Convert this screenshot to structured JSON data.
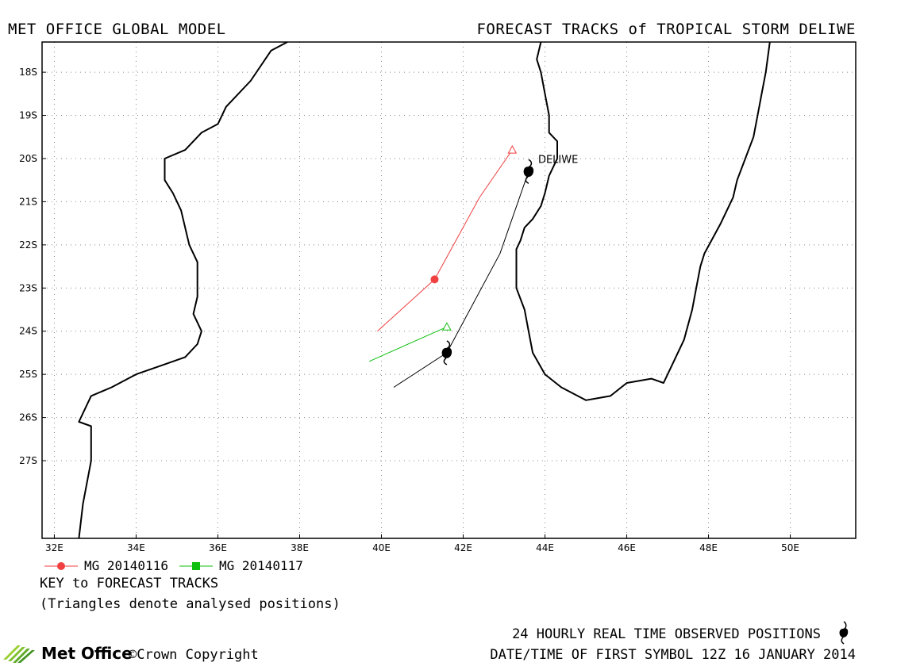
{
  "header": {
    "left": "MET OFFICE GLOBAL MODEL",
    "right": "FORECAST TRACKS of TROPICAL STORM DELIWE"
  },
  "map": {
    "lon_range": [
      31.7,
      51.6
    ],
    "lat_range": [
      -28.8,
      -17.3
    ],
    "grid": "dotted",
    "lat_ticks": [
      {
        "value": -18,
        "label": "18S"
      },
      {
        "value": -19,
        "label": "19S"
      },
      {
        "value": -20,
        "label": "20S"
      },
      {
        "value": -21,
        "label": "21S"
      },
      {
        "value": -22,
        "label": "22S"
      },
      {
        "value": -23,
        "label": "23S"
      },
      {
        "value": -24,
        "label": "24S"
      },
      {
        "value": -25,
        "label": "25S"
      },
      {
        "value": -26,
        "label": "26S"
      },
      {
        "value": -27,
        "label": "27S"
      }
    ],
    "lon_ticks": [
      {
        "value": 32,
        "label": "32E"
      },
      {
        "value": 34,
        "label": "34E"
      },
      {
        "value": 36,
        "label": "36E"
      },
      {
        "value": 38,
        "label": "38E"
      },
      {
        "value": 40,
        "label": "40E"
      },
      {
        "value": 42,
        "label": "42E"
      },
      {
        "value": 44,
        "label": "44E"
      },
      {
        "value": 46,
        "label": "46E"
      },
      {
        "value": 48,
        "label": "48E"
      },
      {
        "value": 50,
        "label": "50E"
      }
    ],
    "storm_name": "DELIWE"
  },
  "chart_data": {
    "type": "map",
    "storm": "DELIWE",
    "observed_track": {
      "symbol": "tropical-storm-icon",
      "points": [
        {
          "lon": 40.3,
          "lat": -25.3
        },
        {
          "lon": 41.6,
          "lat": -24.5,
          "symbol": true
        },
        {
          "lon": 42.9,
          "lat": -22.2
        },
        {
          "lon": 43.6,
          "lat": -20.3,
          "symbol": true
        }
      ]
    },
    "forecast_tracks": [
      {
        "name": "MG 20140116",
        "color": "#f04040",
        "analysed_position": {
          "lon": 43.2,
          "lat": -19.8
        },
        "points": [
          {
            "lon": 43.2,
            "lat": -19.8
          },
          {
            "lon": 42.4,
            "lat": -20.9
          },
          {
            "lon": 41.3,
            "lat": -22.8,
            "marker": true
          },
          {
            "lon": 39.9,
            "lat": -24.0
          }
        ]
      },
      {
        "name": "MG 20140117",
        "color": "#10c010",
        "analysed_position": {
          "lon": 41.6,
          "lat": -23.9
        },
        "points": [
          {
            "lon": 41.6,
            "lat": -23.9
          },
          {
            "lon": 39.7,
            "lat": -24.7
          }
        ]
      }
    ],
    "coastlines": {
      "africa": [
        [
          37.7,
          -17.3
        ],
        [
          37.3,
          -17.5
        ],
        [
          36.8,
          -18.2
        ],
        [
          36.2,
          -18.8
        ],
        [
          36.0,
          -19.2
        ],
        [
          35.6,
          -19.4
        ],
        [
          35.2,
          -19.8
        ],
        [
          34.7,
          -20.0
        ],
        [
          34.7,
          -20.5
        ],
        [
          34.9,
          -20.8
        ],
        [
          35.1,
          -21.2
        ],
        [
          35.3,
          -22.0
        ],
        [
          35.5,
          -22.4
        ],
        [
          35.5,
          -22.9
        ],
        [
          35.5,
          -23.2
        ],
        [
          35.4,
          -23.6
        ],
        [
          35.6,
          -24.0
        ],
        [
          35.5,
          -24.3
        ],
        [
          35.2,
          -24.6
        ],
        [
          34.6,
          -24.8
        ],
        [
          34.0,
          -25.0
        ],
        [
          33.4,
          -25.3
        ],
        [
          32.9,
          -25.5
        ],
        [
          32.6,
          -26.1
        ],
        [
          32.9,
          -26.2
        ],
        [
          32.9,
          -27.0
        ],
        [
          32.7,
          -28.0
        ],
        [
          32.6,
          -28.8
        ]
      ],
      "madagascar": [
        [
          43.9,
          -17.3
        ],
        [
          43.8,
          -17.7
        ],
        [
          43.9,
          -18.0
        ],
        [
          44.0,
          -18.5
        ],
        [
          44.1,
          -19.0
        ],
        [
          44.1,
          -19.4
        ],
        [
          44.3,
          -19.6
        ],
        [
          44.3,
          -20.0
        ],
        [
          44.1,
          -20.4
        ],
        [
          44.0,
          -20.8
        ],
        [
          43.9,
          -21.1
        ],
        [
          43.7,
          -21.4
        ],
        [
          43.5,
          -21.6
        ],
        [
          43.4,
          -21.9
        ],
        [
          43.3,
          -22.1
        ],
        [
          43.3,
          -22.5
        ],
        [
          43.3,
          -23.0
        ],
        [
          43.5,
          -23.5
        ],
        [
          43.6,
          -24.0
        ],
        [
          43.7,
          -24.5
        ],
        [
          44.0,
          -25.0
        ],
        [
          44.4,
          -25.3
        ],
        [
          45.0,
          -25.6
        ],
        [
          45.6,
          -25.5
        ],
        [
          46.0,
          -25.2
        ],
        [
          46.6,
          -25.1
        ],
        [
          46.9,
          -25.2
        ],
        [
          47.1,
          -24.8
        ],
        [
          47.4,
          -24.2
        ],
        [
          47.6,
          -23.5
        ],
        [
          47.7,
          -23.0
        ],
        [
          47.8,
          -22.5
        ],
        [
          47.9,
          -22.2
        ],
        [
          48.3,
          -21.5
        ],
        [
          48.6,
          -20.9
        ],
        [
          48.7,
          -20.5
        ],
        [
          48.9,
          -20.0
        ],
        [
          49.1,
          -19.5
        ],
        [
          49.2,
          -19.0
        ],
        [
          49.3,
          -18.5
        ],
        [
          49.4,
          -18.0
        ],
        [
          49.5,
          -17.3
        ]
      ]
    }
  },
  "legend": {
    "items": [
      {
        "label": "MG 20140116",
        "color": "#f04040",
        "marker": "circle"
      },
      {
        "label": "MG 20140117",
        "color": "#10c010",
        "marker": "square"
      }
    ],
    "title": "KEY to FORECAST TRACKS",
    "note": "(Triangles denote analysed positions)"
  },
  "footer": {
    "observed": "24 HOURLY REAL TIME OBSERVED POSITIONS",
    "date": "DATE/TIME OF FIRST SYMBOL 12Z 16 JANUARY 2014",
    "logo": "Met Office",
    "copyright": "©Crown Copyright"
  }
}
